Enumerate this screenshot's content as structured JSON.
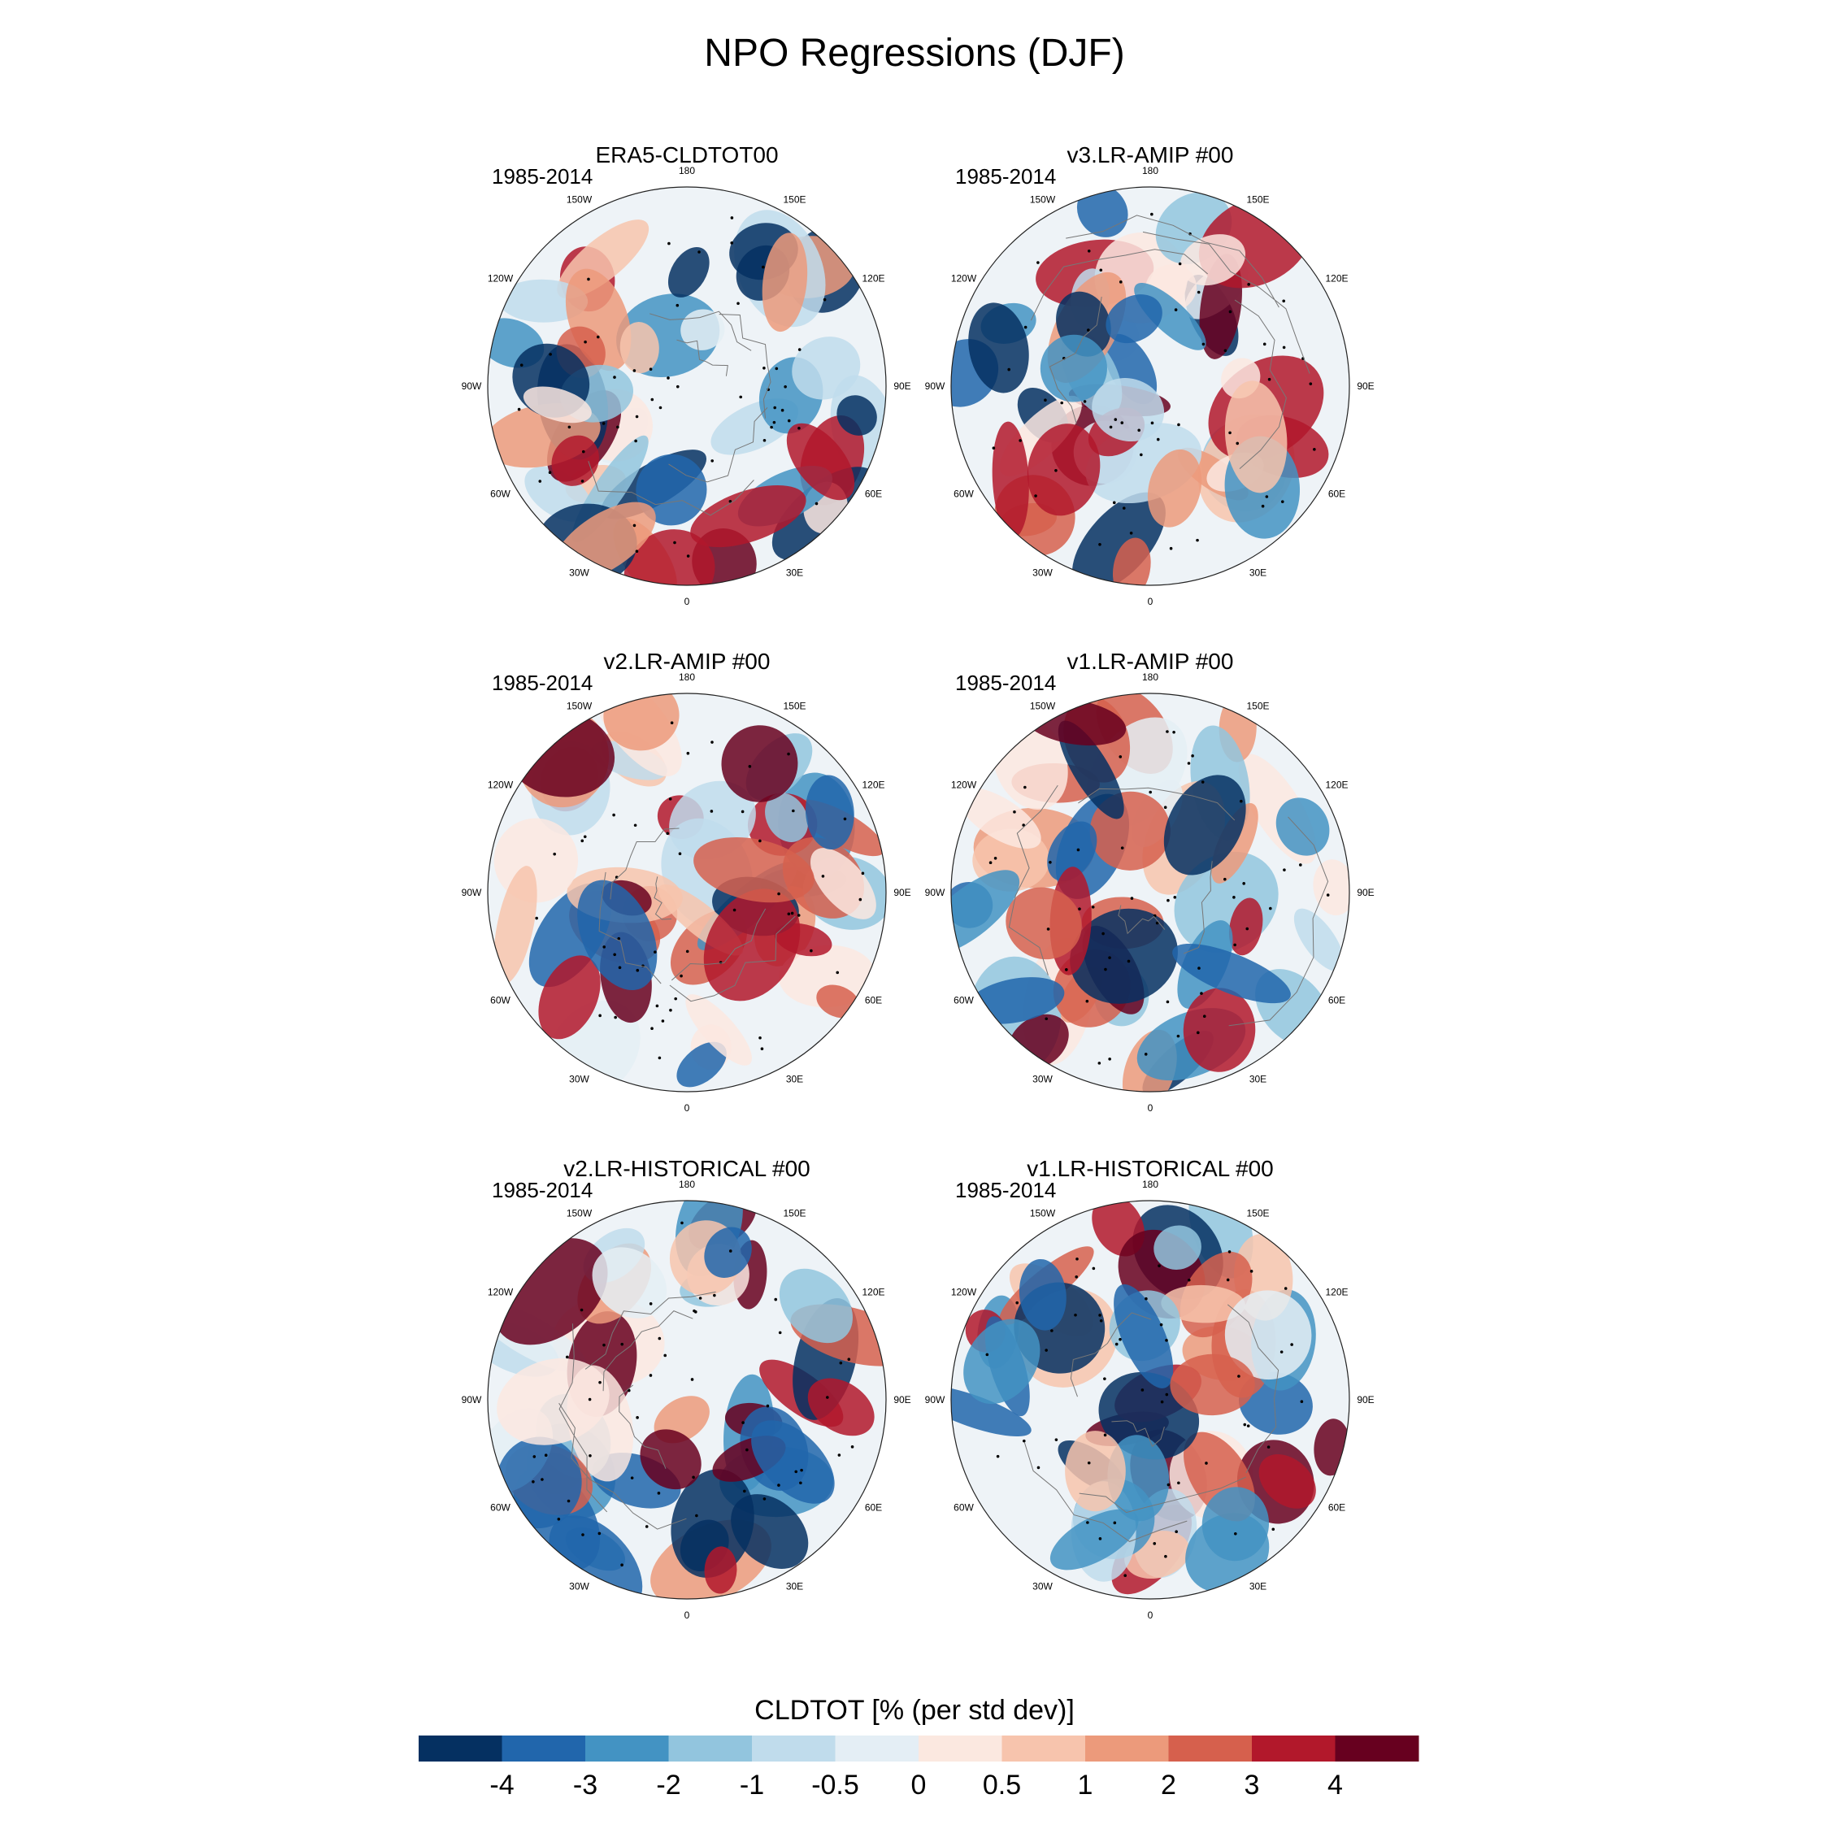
{
  "title": "NPO Regressions (DJF)",
  "chart_data": {
    "type": "polar-contour-map",
    "season": "DJF",
    "variable": "CLDTOT",
    "period": "1985-2014",
    "longitude_labels": [
      "180",
      "150E",
      "120E",
      "90E",
      "60E",
      "30E",
      "0",
      "30W",
      "60W",
      "90W",
      "120W",
      "150W"
    ],
    "panels": [
      {
        "title": "ERA5-CLDTOT00",
        "period": "1985-2014"
      },
      {
        "title": "v3.LR-AMIP  #00",
        "period": "1985-2014"
      },
      {
        "title": "v2.LR-AMIP  #00",
        "period": "1985-2014"
      },
      {
        "title": "v1.LR-AMIP  #00",
        "period": "1985-2014"
      },
      {
        "title": "v2.LR-HISTORICAL  #00",
        "period": "1985-2014"
      },
      {
        "title": "v1.LR-HISTORICAL  #00",
        "period": "1985-2014"
      }
    ],
    "colorbar": {
      "title": "CLDTOT [% (per std dev)]",
      "levels": [
        "-4",
        "-3",
        "-2",
        "-1",
        "-0.5",
        "0",
        "0.5",
        "1",
        "2",
        "3",
        "4"
      ],
      "colors": [
        "#053061",
        "#2166ac",
        "#4393c3",
        "#92c5de",
        "#c0dcec",
        "#e4eef5",
        "#fbe8e0",
        "#f7c4ad",
        "#ec9a7b",
        "#d6604d",
        "#b2182b",
        "#67001f"
      ]
    }
  }
}
